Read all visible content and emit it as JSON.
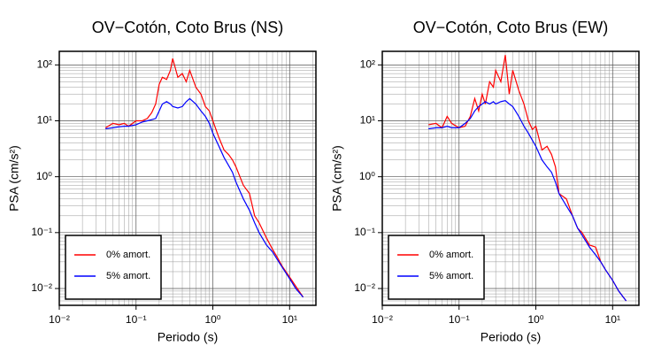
{
  "chart_data": [
    {
      "type": "line",
      "title": "OV−Cotón, Coto Brus (NS)",
      "xlabel": "Periodo (s)",
      "ylabel": "PSA (cm/s²)",
      "xscale": "log",
      "yscale": "log",
      "grid": true,
      "minor_grid": true,
      "legend": "lower left",
      "xlim": [
        0.01,
        22
      ],
      "ylim": [
        0.005,
        175
      ],
      "xticks": [
        {
          "value": 0.01,
          "label": "10⁻²"
        },
        {
          "value": 0.1,
          "label": "10⁻¹"
        },
        {
          "value": 1,
          "label": "10⁰"
        },
        {
          "value": 10,
          "label": "10¹"
        }
      ],
      "yticks": [
        {
          "value": 0.01,
          "label": "10⁻²"
        },
        {
          "value": 0.1,
          "label": "10⁻¹"
        },
        {
          "value": 1,
          "label": "10⁰"
        },
        {
          "value": 10,
          "label": "10¹"
        },
        {
          "value": 100,
          "label": "10²"
        }
      ],
      "x": [
        0.04,
        0.05,
        0.06,
        0.07,
        0.08,
        0.1,
        0.12,
        0.14,
        0.16,
        0.18,
        0.2,
        0.22,
        0.25,
        0.28,
        0.3,
        0.35,
        0.4,
        0.45,
        0.5,
        0.6,
        0.7,
        0.8,
        0.9,
        1,
        1.2,
        1.4,
        1.6,
        1.8,
        2,
        2.5,
        3,
        3.5,
        4,
        5,
        6,
        7,
        8,
        10,
        12,
        15
      ],
      "series": [
        {
          "name": "0% amort.",
          "color": "#ff0000",
          "values": [
            7.5,
            9,
            8.5,
            9,
            8,
            10,
            10,
            11,
            14,
            20,
            45,
            60,
            55,
            80,
            130,
            60,
            70,
            50,
            80,
            40,
            30,
            18,
            15,
            10,
            5,
            3,
            2.5,
            2,
            1.5,
            0.7,
            0.5,
            0.2,
            0.15,
            0.08,
            0.05,
            0.035,
            0.025,
            0.016,
            0.011,
            0.007
          ]
        },
        {
          "name": "5% amort.",
          "color": "#0000ff",
          "values": [
            7.2,
            7.5,
            7.8,
            8,
            8,
            8.5,
            9.5,
            10,
            10.5,
            11,
            15,
            20,
            22,
            20,
            18,
            17,
            18,
            22,
            25,
            20,
            15,
            12,
            9,
            6,
            3.5,
            2.2,
            1.6,
            1.2,
            0.8,
            0.4,
            0.25,
            0.15,
            0.1,
            0.06,
            0.045,
            0.032,
            0.024,
            0.015,
            0.01,
            0.007
          ]
        }
      ]
    },
    {
      "type": "line",
      "title": "OV−Cotón, Coto Brus (EW)",
      "xlabel": "Periodo (s)",
      "ylabel": "PSA (cm/s²)",
      "xscale": "log",
      "yscale": "log",
      "grid": true,
      "minor_grid": true,
      "legend": "lower left",
      "xlim": [
        0.01,
        22
      ],
      "ylim": [
        0.005,
        175
      ],
      "xticks": [
        {
          "value": 0.01,
          "label": "10⁻²"
        },
        {
          "value": 0.1,
          "label": "10⁻¹"
        },
        {
          "value": 1,
          "label": "10⁰"
        },
        {
          "value": 10,
          "label": "10¹"
        }
      ],
      "yticks": [
        {
          "value": 0.01,
          "label": "10⁻²"
        },
        {
          "value": 0.1,
          "label": "10⁻¹"
        },
        {
          "value": 1,
          "label": "10⁰"
        },
        {
          "value": 10,
          "label": "10¹"
        },
        {
          "value": 100,
          "label": "10²"
        }
      ],
      "x": [
        0.04,
        0.05,
        0.06,
        0.07,
        0.08,
        0.1,
        0.12,
        0.14,
        0.16,
        0.18,
        0.2,
        0.22,
        0.25,
        0.28,
        0.3,
        0.35,
        0.4,
        0.45,
        0.5,
        0.6,
        0.7,
        0.8,
        0.9,
        1,
        1.2,
        1.4,
        1.6,
        1.8,
        2,
        2.5,
        3,
        3.5,
        4,
        5,
        6,
        7,
        8,
        10,
        12,
        15
      ],
      "series": [
        {
          "name": "0% amort.",
          "color": "#ff0000",
          "values": [
            8.5,
            9,
            7.5,
            12,
            9,
            7.5,
            8,
            12,
            25,
            15,
            30,
            20,
            50,
            40,
            80,
            50,
            150,
            30,
            80,
            35,
            20,
            10,
            7,
            8,
            3,
            3.5,
            2.5,
            1.5,
            0.5,
            0.4,
            0.2,
            0.12,
            0.1,
            0.06,
            0.055,
            0.03,
            0.022,
            0.014,
            0.009,
            0.006
          ]
        },
        {
          "name": "5% amort.",
          "color": "#0000ff",
          "values": [
            7.2,
            7.5,
            7.5,
            8,
            7.5,
            7.5,
            9,
            11,
            15,
            18,
            20,
            22,
            20,
            22,
            20,
            22,
            23,
            20,
            18,
            12,
            8,
            6,
            4.5,
            3.5,
            2,
            1.5,
            1.2,
            0.8,
            0.5,
            0.3,
            0.2,
            0.12,
            0.09,
            0.055,
            0.04,
            0.03,
            0.022,
            0.014,
            0.009,
            0.006
          ]
        }
      ]
    }
  ]
}
